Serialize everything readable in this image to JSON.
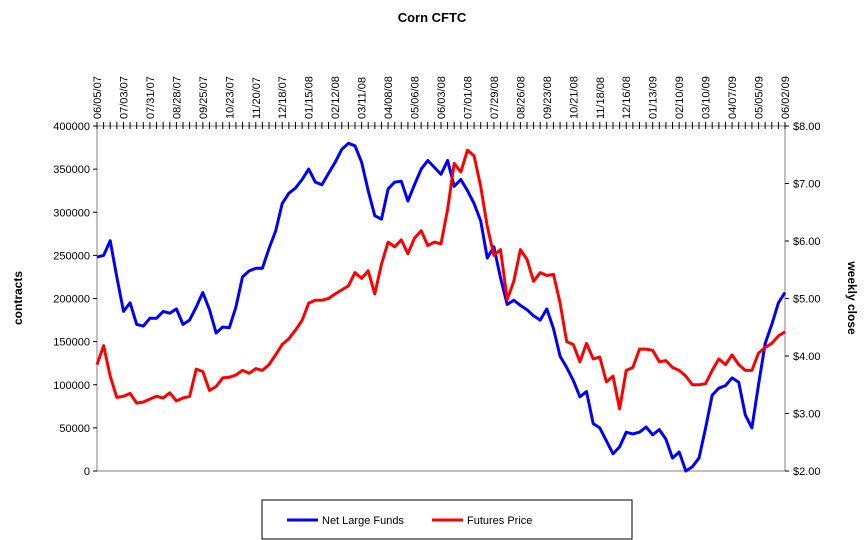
{
  "chart_data": {
    "type": "line",
    "title": "Corn CFTC",
    "y_label": "contracts",
    "y2_label": "weekly close",
    "categories": [
      "06/05/07",
      null,
      null,
      null,
      "07/03/07",
      null,
      null,
      null,
      "07/31/07",
      null,
      null,
      null,
      "08/28/07",
      null,
      null,
      null,
      "09/25/07",
      null,
      null,
      null,
      "10/23/07",
      null,
      null,
      null,
      "11/20/07",
      null,
      null,
      null,
      "12/18/07",
      null,
      null,
      null,
      "01/15/08",
      null,
      null,
      null,
      "02/12/08",
      null,
      null,
      null,
      "03/11/08",
      null,
      null,
      null,
      "04/08/08",
      null,
      null,
      null,
      "05/06/08",
      null,
      null,
      null,
      "06/03/08",
      null,
      null,
      null,
      "07/01/08",
      null,
      null,
      null,
      "07/29/08",
      null,
      null,
      null,
      "08/26/08",
      null,
      null,
      null,
      "09/23/08",
      null,
      null,
      null,
      "10/21/08",
      null,
      null,
      null,
      "11/18/08",
      null,
      null,
      null,
      "12/16/08",
      null,
      null,
      null,
      "01/13/09",
      null,
      null,
      null,
      "02/10/09",
      null,
      null,
      null,
      "03/10/09",
      null,
      null,
      null,
      "04/07/09",
      null,
      null,
      null,
      "05/05/09",
      null,
      null,
      null,
      "06/02/09"
    ],
    "series": [
      {
        "name": "Net Large Funds",
        "color": "#0000ff",
        "values": [
          248000,
          250000,
          267000,
          225000,
          185000,
          195000,
          170000,
          168000,
          177000,
          177000,
          185000,
          183000,
          188000,
          170000,
          175000,
          190000,
          207000,
          187000,
          160000,
          167000,
          166000,
          190000,
          225000,
          232000,
          235000,
          235000,
          258000,
          278000,
          310000,
          322000,
          328000,
          338000,
          350000,
          335000,
          332000,
          345000,
          358000,
          373000,
          380000,
          377000,
          358000,
          325000,
          296000,
          292000,
          327000,
          335000,
          336000,
          313000,
          332000,
          350000,
          360000,
          352000,
          344000,
          360000,
          330000,
          338000,
          325000,
          310000,
          290000,
          247000,
          260000,
          224000,
          193000,
          198000,
          192000,
          187000,
          180000,
          175000,
          188000,
          165000,
          133000,
          120000,
          105000,
          86000,
          92000,
          55000,
          50000,
          35000,
          20000,
          28000,
          45000,
          43000,
          45000,
          51000,
          42000,
          48000,
          37000,
          15000,
          22000,
          0,
          5000,
          15000,
          50000,
          88000,
          96000,
          99000,
          108000,
          103000,
          65000,
          50000,
          100000,
          148000,
          170000,
          195000,
          207000
        ]
      },
      {
        "name": "Futures Price",
        "color": "#ff0000",
        "axis": "y2",
        "values": [
          3.85,
          4.18,
          3.65,
          3.28,
          3.3,
          3.35,
          3.18,
          3.2,
          3.25,
          3.3,
          3.27,
          3.36,
          3.22,
          3.27,
          3.3,
          3.77,
          3.73,
          3.4,
          3.47,
          3.62,
          3.63,
          3.67,
          3.75,
          3.7,
          3.78,
          3.75,
          3.85,
          4.02,
          4.2,
          4.3,
          4.45,
          4.62,
          4.92,
          4.97,
          4.97,
          5.0,
          5.08,
          5.15,
          5.22,
          5.45,
          5.35,
          5.48,
          5.08,
          5.6,
          5.98,
          5.9,
          6.02,
          5.78,
          6.05,
          6.18,
          5.92,
          5.98,
          5.95,
          6.55,
          7.35,
          7.2,
          7.58,
          7.48,
          6.95,
          6.25,
          5.75,
          5.85,
          4.98,
          5.3,
          5.85,
          5.68,
          5.3,
          5.45,
          5.4,
          5.42,
          4.92,
          4.25,
          4.2,
          3.9,
          4.22,
          3.95,
          3.98,
          3.55,
          3.65,
          3.08,
          3.75,
          3.8,
          4.12,
          4.12,
          4.1,
          3.9,
          3.92,
          3.8,
          3.75,
          3.65,
          3.5,
          3.5,
          3.52,
          3.75,
          3.95,
          3.85,
          4.02,
          3.85,
          3.75,
          3.75,
          4.05,
          4.15,
          4.22,
          4.35,
          4.42
        ]
      }
    ],
    "ylim": [
      0,
      400000
    ],
    "yticks": [
      0,
      50000,
      100000,
      150000,
      200000,
      250000,
      300000,
      350000,
      400000
    ],
    "y2lim": [
      2,
      8
    ],
    "y2ticks": [
      {
        "value": 2,
        "label": "$2.00"
      },
      {
        "value": 3,
        "label": "$3.00"
      },
      {
        "value": 4,
        "label": "$4.00"
      },
      {
        "value": 5,
        "label": "$5.00"
      },
      {
        "value": 6,
        "label": "$6.00"
      },
      {
        "value": 7,
        "label": "$7.00"
      },
      {
        "value": 8,
        "label": "$8.00"
      }
    ],
    "grid": false,
    "legend": "bottom"
  }
}
